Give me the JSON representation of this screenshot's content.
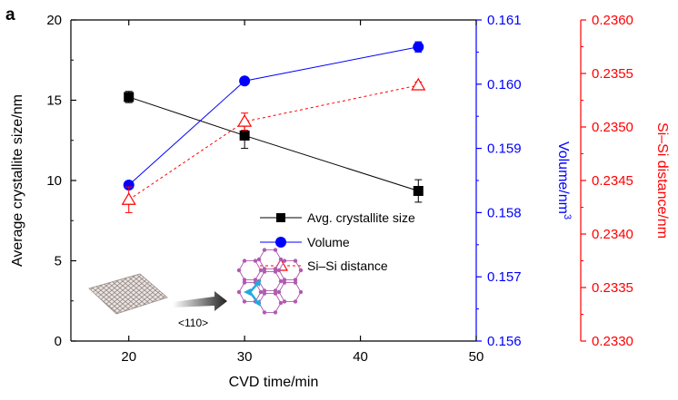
{
  "panel_label": "a",
  "colors": {
    "left": "#000000",
    "volume": "#0000ff",
    "sisi": "#ff0000"
  },
  "chart_data": {
    "type": "line",
    "x": [
      20,
      30,
      45
    ],
    "xlabel": "CVD time/min",
    "xlim": [
      15,
      50
    ],
    "xticks": [
      20,
      30,
      40,
      50
    ],
    "axes": {
      "left": {
        "label": "Average crystallite size/nm",
        "lim": [
          0,
          20
        ],
        "ticks": [
          "0",
          "5",
          "10",
          "15",
          "20"
        ]
      },
      "right1": {
        "label": "Volume/nm",
        "label_sup": "3",
        "lim": [
          0.156,
          0.161
        ],
        "ticks": [
          "0.156",
          "0.157",
          "0.158",
          "0.159",
          "0.160",
          "0.161"
        ]
      },
      "right2": {
        "label": "Si–Si distance/nm",
        "lim": [
          0.233,
          0.236
        ],
        "ticks": [
          "0.2330",
          "0.2335",
          "0.2340",
          "0.2345",
          "0.2350",
          "0.2355",
          "0.2360"
        ]
      }
    },
    "series": [
      {
        "name": "Avg. crystallite size",
        "axis": "left",
        "marker": "square",
        "style": "solid",
        "color": "#000000",
        "values": [
          15.2,
          12.8,
          9.35
        ],
        "errors": [
          0.35,
          0.8,
          0.7
        ]
      },
      {
        "name": "Volume",
        "axis": "right1",
        "marker": "circle",
        "style": "solid",
        "color": "#0000ff",
        "values": [
          0.15843,
          0.16005,
          0.16058
        ],
        "errors": [
          3e-05,
          3e-05,
          8e-05
        ]
      },
      {
        "name": "Si–Si distance",
        "axis": "right2",
        "marker": "triangle-open",
        "style": "dashed",
        "color": "#ff0000",
        "values": [
          0.23432,
          0.23505,
          0.23539
        ],
        "errors": [
          0.00012,
          8e-05,
          3e-05
        ]
      }
    ],
    "legend": "center-right",
    "grid": false
  },
  "inset": {
    "direction_label": "<110>",
    "arrow_color": "#22aadd",
    "lattice_color": "#b05ab0"
  }
}
